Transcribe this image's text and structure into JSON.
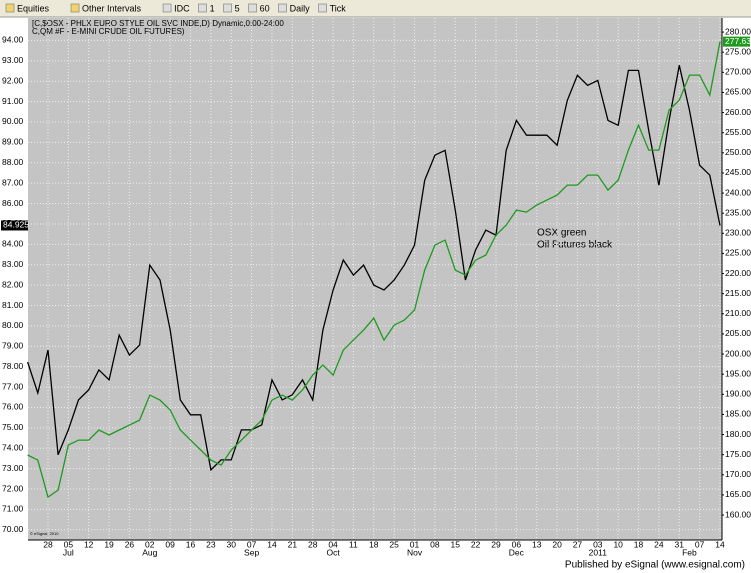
{
  "toolbar": {
    "items": [
      "Equities",
      "Other Intervals",
      "IDC",
      "1",
      "5",
      "60",
      "Daily",
      "Tick"
    ]
  },
  "footer": "Published by eSignal (www.esignal.com)",
  "chart_data": {
    "type": "line",
    "header": [
      "[C,$OSX - PHLX EURO STYLE OIL SVC INDE,D) Dynamic,0:00-24:00",
      "C,QM #F - E-MINI CRUDE OIL FUTURES)"
    ],
    "annotations": [
      "OSX green",
      "Oil Futures black"
    ],
    "copyright": "© eSignal, 2010",
    "categories": [
      null,
      null,
      "28",
      null,
      "05",
      null,
      "12",
      null,
      "19",
      null,
      "26",
      null,
      "02",
      null,
      "09",
      null,
      "16",
      null,
      "23",
      null,
      "30",
      null,
      "07",
      null,
      "14",
      null,
      "21",
      null,
      "28",
      null,
      "04",
      null,
      "11",
      null,
      "18",
      null,
      "25",
      null,
      "01",
      null,
      "08",
      null,
      "15",
      null,
      "22",
      null,
      "29",
      null,
      "06",
      null,
      "13",
      null,
      "20",
      null,
      "27",
      null,
      "03",
      null,
      "10",
      null,
      "18",
      null,
      "24",
      null,
      "31",
      null,
      "07",
      null,
      "14"
    ],
    "months": [
      null,
      null,
      null,
      null,
      "Jul",
      null,
      null,
      null,
      null,
      null,
      null,
      null,
      "Aug",
      null,
      null,
      null,
      null,
      null,
      null,
      null,
      null,
      null,
      "Sep",
      null,
      null,
      null,
      null,
      null,
      null,
      null,
      "Oct",
      null,
      null,
      null,
      null,
      null,
      null,
      null,
      "Nov",
      null,
      null,
      null,
      null,
      null,
      null,
      null,
      null,
      null,
      "Dec",
      null,
      null,
      null,
      null,
      null,
      null,
      null,
      "2011",
      null,
      null,
      null,
      null,
      null,
      null,
      null,
      null,
      "Feb",
      null,
      null,
      null
    ],
    "series": [
      {
        "name": "Oil Futures",
        "color": "#000000",
        "axis": "y",
        "values": [
          78.23,
          76.71,
          78.82,
          73.68,
          74.9,
          76.37,
          76.86,
          77.84,
          77.35,
          79.55,
          78.57,
          79.06,
          82.98,
          82.25,
          79.8,
          76.37,
          75.64,
          75.64,
          72.94,
          73.43,
          73.43,
          74.9,
          74.9,
          75.15,
          77.35,
          76.37,
          76.62,
          77.35,
          76.37,
          79.8,
          81.76,
          83.23,
          82.49,
          82.98,
          82.0,
          81.76,
          82.25,
          82.98,
          83.96,
          87.14,
          88.37,
          88.61,
          85.67,
          82.25,
          83.72,
          84.7,
          84.45,
          88.61,
          90.08,
          89.35,
          89.35,
          89.35,
          88.86,
          91.06,
          92.29,
          91.8,
          92.04,
          90.08,
          89.84,
          92.53,
          92.53,
          89.59,
          86.9,
          90.08,
          92.78,
          90.57,
          87.88,
          87.39,
          84.925
        ]
      },
      {
        "name": "OSX",
        "color": "#1f9a1f",
        "axis": "y2",
        "values": [
          174.91,
          173.66,
          164.47,
          166.21,
          177.39,
          178.63,
          178.63,
          181.12,
          179.88,
          181.12,
          182.36,
          183.6,
          189.81,
          188.57,
          186.09,
          181.12,
          178.63,
          176.15,
          173.66,
          172.42,
          176.15,
          178.63,
          181.12,
          183.6,
          188.57,
          189.81,
          188.57,
          191.06,
          194.78,
          197.27,
          194.78,
          200.99,
          203.48,
          205.96,
          208.94,
          203.48,
          207.2,
          208.45,
          210.93,
          220.87,
          227.08,
          228.32,
          220.87,
          219.63,
          223.35,
          224.6,
          229.57,
          232.05,
          235.78,
          235.28,
          237.02,
          238.26,
          239.5,
          241.99,
          241.99,
          244.47,
          244.47,
          240.75,
          243.23,
          250.68,
          256.89,
          250.68,
          250.68,
          260.62,
          263.11,
          269.32,
          269.32,
          264.35,
          277.63
        ]
      }
    ],
    "ylim": [
      69.5,
      95.1
    ],
    "yticks": [
      {
        "value": 70,
        "label": "70.00"
      },
      {
        "value": 71,
        "label": "71.00"
      },
      {
        "value": 72,
        "label": "72.00"
      },
      {
        "value": 73,
        "label": "73.00"
      },
      {
        "value": 74,
        "label": "74.00"
      },
      {
        "value": 75,
        "label": "75.00"
      },
      {
        "value": 76,
        "label": "76.00"
      },
      {
        "value": 77,
        "label": "77.00"
      },
      {
        "value": 78,
        "label": "78.00"
      },
      {
        "value": 79,
        "label": "79.00"
      },
      {
        "value": 80,
        "label": "80.00"
      },
      {
        "value": 81,
        "label": "81.00"
      },
      {
        "value": 82,
        "label": "82.00"
      },
      {
        "value": 83,
        "label": "83.00"
      },
      {
        "value": 84,
        "label": "84.00"
      },
      {
        "value": 85,
        "label": "85.00"
      },
      {
        "value": 86,
        "label": "86.00"
      },
      {
        "value": 87,
        "label": "87.00"
      },
      {
        "value": 88,
        "label": "88.00"
      },
      {
        "value": 89,
        "label": "89.00"
      },
      {
        "value": 90,
        "label": "90.00"
      },
      {
        "value": 91,
        "label": "91.00"
      },
      {
        "value": 92,
        "label": "92.00"
      },
      {
        "value": 93,
        "label": "93.00"
      },
      {
        "value": 94,
        "label": "94.00"
      }
    ],
    "y2lim": [
      153.8,
      283.5
    ],
    "y2ticks": [
      {
        "value": 160,
        "label": "160.00"
      },
      {
        "value": 165,
        "label": "165.00"
      },
      {
        "value": 170,
        "label": "170.00"
      },
      {
        "value": 175,
        "label": "175.00"
      },
      {
        "value": 180,
        "label": "180.00"
      },
      {
        "value": 185,
        "label": "185.00"
      },
      {
        "value": 190,
        "label": "190.00"
      },
      {
        "value": 195,
        "label": "195.00"
      },
      {
        "value": 200,
        "label": "200.00"
      },
      {
        "value": 205,
        "label": "205.00"
      },
      {
        "value": 210,
        "label": "210.00"
      },
      {
        "value": 215,
        "label": "215.00"
      },
      {
        "value": 220,
        "label": "220.00"
      },
      {
        "value": 225,
        "label": "225.00"
      },
      {
        "value": 230,
        "label": "230.00"
      },
      {
        "value": 235,
        "label": "235.00"
      },
      {
        "value": 240,
        "label": "240.00"
      },
      {
        "value": 245,
        "label": "245.00"
      },
      {
        "value": 250,
        "label": "250.00"
      },
      {
        "value": 255,
        "label": "255.00"
      },
      {
        "value": 260,
        "label": "260.00"
      },
      {
        "value": 265,
        "label": "265.00"
      },
      {
        "value": 270,
        "label": "270.00"
      },
      {
        "value": 275,
        "label": "275.00"
      },
      {
        "value": 280,
        "label": "280.00"
      }
    ],
    "grid": true
  }
}
